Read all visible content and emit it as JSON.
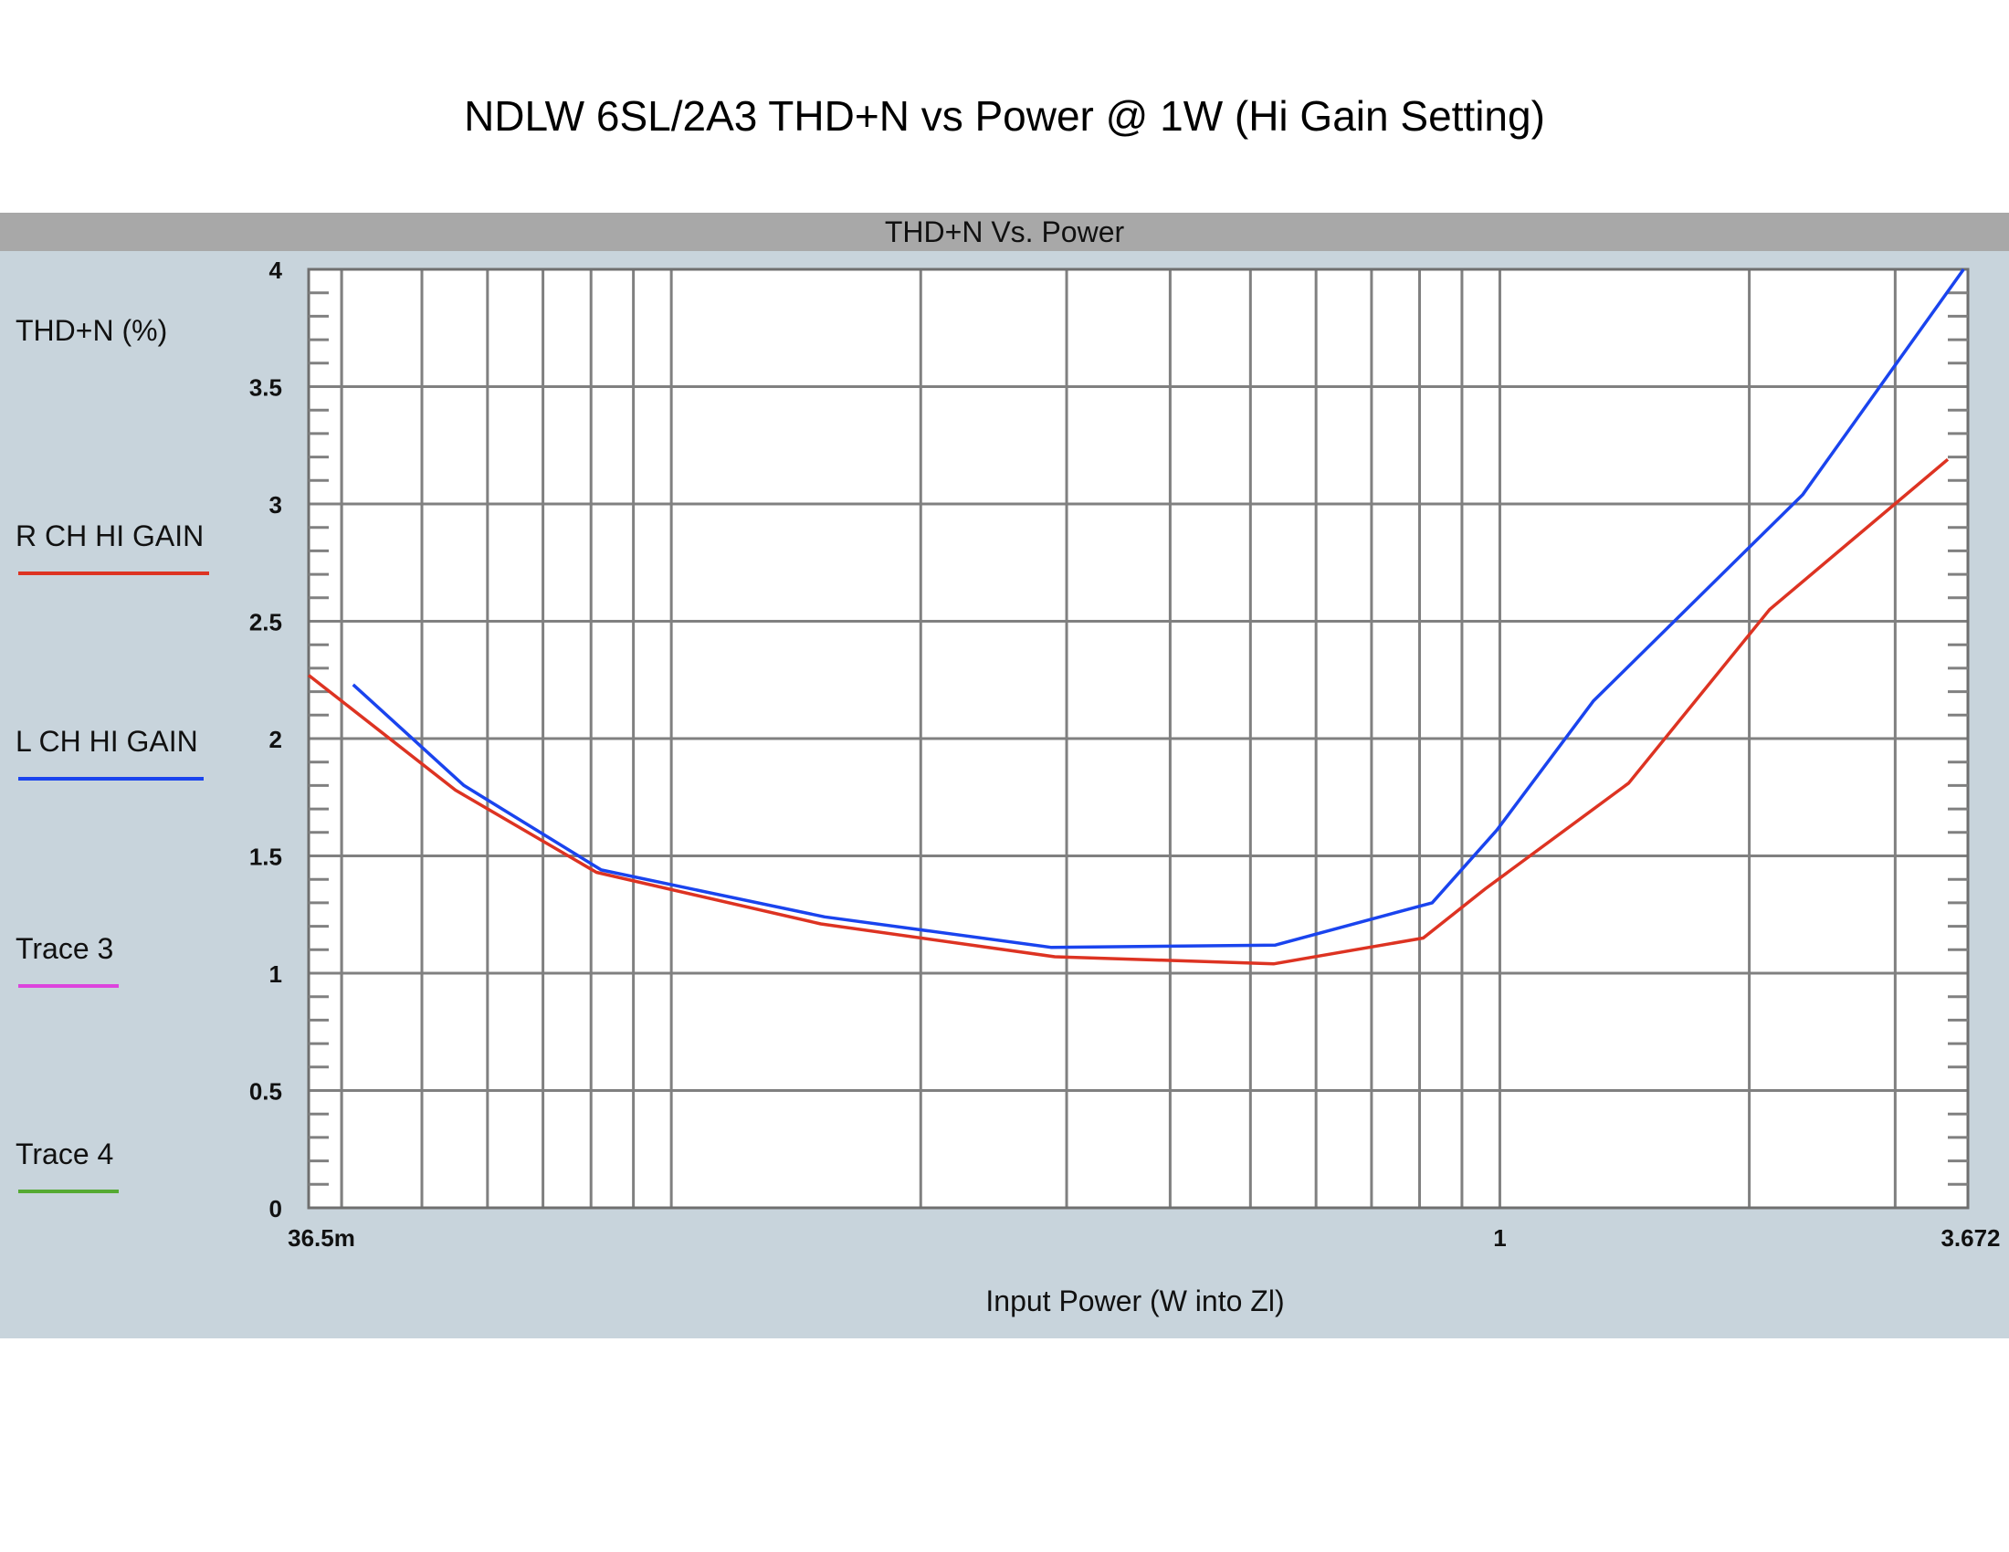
{
  "page": {
    "title": "NDLW 6SL/2A3 THD+N vs Power @ 1W (Hi Gain Setting)"
  },
  "panel": {
    "header": "THD+N Vs. Power"
  },
  "legend": {
    "ylabel": "THD+N (%)",
    "traces": [
      {
        "name": "R CH HI GAIN",
        "color": "#dd3322"
      },
      {
        "name": "L CH HI GAIN",
        "color": "#1a44ee"
      },
      {
        "name": "Trace 3",
        "color": "#dd44dd"
      },
      {
        "name": "Trace 4",
        "color": "#55aa33"
      }
    ]
  },
  "chart_data": {
    "type": "line",
    "title": "THD+N Vs. Power",
    "xlabel": "Input Power (W into Zl)",
    "ylabel": "THD+N (%)",
    "xscale": "log",
    "xlim": [
      0.0365,
      3.672
    ],
    "ylim": [
      0,
      4
    ],
    "grid": true,
    "xtick_labels": [
      {
        "value": 0.0365,
        "label": "36.5m"
      },
      {
        "value": 1,
        "label": "1"
      },
      {
        "value": 3.672,
        "label": "3.672"
      }
    ],
    "ytick_labels": [
      {
        "value": 0,
        "label": "0"
      },
      {
        "value": 0.5,
        "label": "0.5"
      },
      {
        "value": 1,
        "label": "1"
      },
      {
        "value": 1.5,
        "label": "1.5"
      },
      {
        "value": 2,
        "label": "2"
      },
      {
        "value": 2.5,
        "label": "2.5"
      },
      {
        "value": 3,
        "label": "3"
      },
      {
        "value": 3.5,
        "label": "3.5"
      },
      {
        "value": 4,
        "label": "4"
      }
    ],
    "series": [
      {
        "name": "R CH HI GAIN",
        "color": "#dd3322",
        "x": [
          0.0365,
          0.0549,
          0.0812,
          0.1515,
          0.2903,
          0.5339,
          0.8081,
          0.9605,
          1.4305,
          2.1162,
          3.4725
        ],
        "y": [
          2.27,
          1.78,
          1.43,
          1.21,
          1.07,
          1.04,
          1.15,
          1.36,
          1.81,
          2.55,
          3.19
        ]
      },
      {
        "name": "L CH HI GAIN",
        "color": "#1a44ee",
        "x": [
          0.0413,
          0.0562,
          0.0823,
          0.1531,
          0.2871,
          0.5358,
          0.8285,
          0.9918,
          1.2966,
          2.3206,
          3.6288
        ],
        "y": [
          2.23,
          1.8,
          1.44,
          1.24,
          1.11,
          1.12,
          1.3,
          1.61,
          2.16,
          3.04,
          4.0
        ]
      }
    ]
  }
}
